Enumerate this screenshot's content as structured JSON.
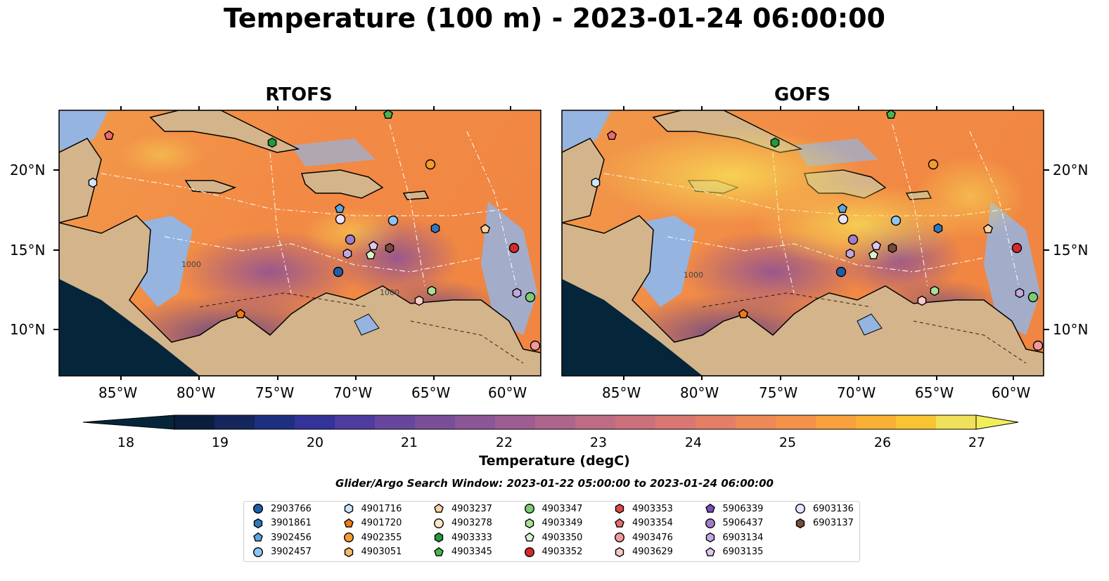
{
  "title": "Temperature (100 m) - 2023-01-24 06:00:00",
  "panels": [
    {
      "title": "RTOFS"
    },
    {
      "title": "GOFS"
    }
  ],
  "lon_ticks": [
    "85°W",
    "80°W",
    "75°W",
    "70°W",
    "65°W",
    "60°W"
  ],
  "lat_ticks": [
    "20°N",
    "15°N",
    "10°N"
  ],
  "colorbar": {
    "label": "Temperature (degC)",
    "ticks": [
      "18",
      "19",
      "20",
      "21",
      "22",
      "23",
      "24",
      "25",
      "26",
      "27"
    ],
    "colors": [
      "#0b1d3c",
      "#14265c",
      "#1f2f80",
      "#33339a",
      "#4e3c9e",
      "#66479d",
      "#7a4f9a",
      "#8b5796",
      "#9c5e91",
      "#ad658b",
      "#bd6c84",
      "#cc717c",
      "#d97872",
      "#e47f66",
      "#ee8858",
      "#f5924a",
      "#f8a03d",
      "#f9b034",
      "#f8c431",
      "#f1e05a"
    ]
  },
  "search_window": "Glider/Argo Search Window: 2023-01-22 05:00:00 to 2023-01-24 06:00:00",
  "contour_labels": [
    "1000",
    "1000",
    "1000"
  ],
  "legend": [
    {
      "id": "2903766",
      "marker": "circle",
      "color": "#1f5fa8"
    },
    {
      "id": "3901861",
      "marker": "hexagon",
      "color": "#2f78c0"
    },
    {
      "id": "3902456",
      "marker": "pentagon",
      "color": "#5aa7e0"
    },
    {
      "id": "3902457",
      "marker": "circle",
      "color": "#8ec4f0"
    },
    {
      "id": "4901716",
      "marker": "hexagon",
      "color": "#cde6fb"
    },
    {
      "id": "4901720",
      "marker": "pentagon",
      "color": "#f07a14"
    },
    {
      "id": "4902355",
      "marker": "circle",
      "color": "#f59a30"
    },
    {
      "id": "4903051",
      "marker": "hexagon",
      "color": "#f8b968"
    },
    {
      "id": "4903237",
      "marker": "pentagon",
      "color": "#fbd3a2"
    },
    {
      "id": "4903278",
      "marker": "circle",
      "color": "#fde3c8"
    },
    {
      "id": "4903333",
      "marker": "hexagon",
      "color": "#239a3b"
    },
    {
      "id": "4903345",
      "marker": "pentagon",
      "color": "#48b64c"
    },
    {
      "id": "4903347",
      "marker": "circle",
      "color": "#7ccc72"
    },
    {
      "id": "4903349",
      "marker": "hexagon",
      "color": "#a8e09a"
    },
    {
      "id": "4903350",
      "marker": "pentagon",
      "color": "#d6f3cc"
    },
    {
      "id": "4903352",
      "marker": "circle",
      "color": "#d42a2a"
    },
    {
      "id": "4903353",
      "marker": "hexagon",
      "color": "#e04848"
    },
    {
      "id": "4903354",
      "marker": "pentagon",
      "color": "#ea6b6b"
    },
    {
      "id": "4903476",
      "marker": "circle",
      "color": "#f29a9a"
    },
    {
      "id": "4903629",
      "marker": "hexagon",
      "color": "#f9c8c8"
    },
    {
      "id": "5906339",
      "marker": "pentagon",
      "color": "#7b4fb8"
    },
    {
      "id": "5906437",
      "marker": "circle",
      "color": "#a27ccc"
    },
    {
      "id": "6903134",
      "marker": "hexagon",
      "color": "#c3a8e0"
    },
    {
      "id": "6903135",
      "marker": "pentagon",
      "color": "#dcc8f0"
    },
    {
      "id": "6903136",
      "marker": "circle",
      "color": "#efe0fb"
    },
    {
      "id": "6903137",
      "marker": "hexagon",
      "color": "#7a4a3a"
    }
  ],
  "map_colors": {
    "ocean": "#f08a45",
    "land": "#d4b48a",
    "shelf": "#95b4e0",
    "deep_shade": "#05253a"
  }
}
